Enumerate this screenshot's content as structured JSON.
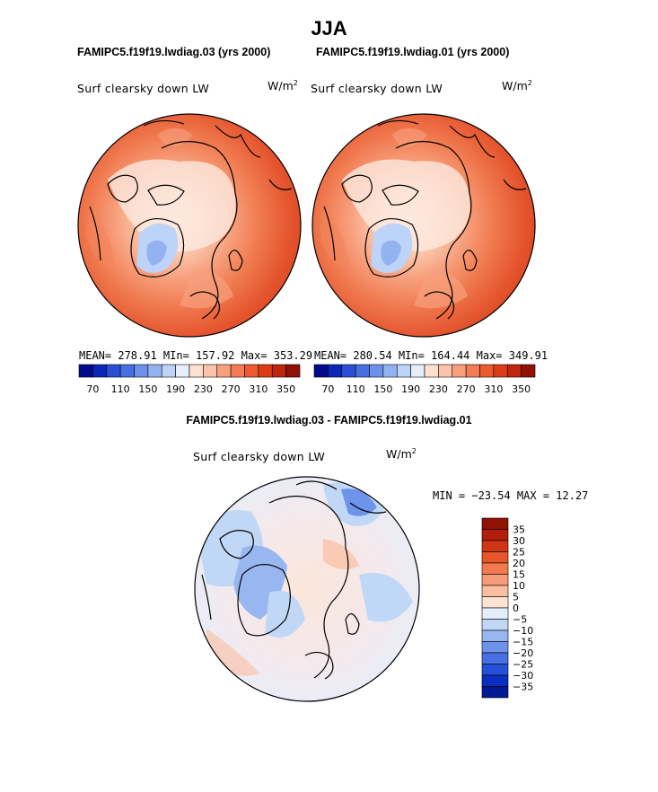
{
  "page_title": "JJA",
  "panels": [
    {
      "case_title": "FAMIPC5.f19f19.lwdiag.03 (yrs 2000)",
      "variable": "Surf clearsky down LW",
      "units_base": "W/m",
      "units_exp": "2",
      "stats_text": "MEAN= 278.91   MIn= 157.92   Max= 353.29"
    },
    {
      "case_title": "FAMIPC5.f19f19.lwdiag.01 (yrs 2000)",
      "variable": "Surf clearsky down LW",
      "units_base": "W/m",
      "units_exp": "2",
      "stats_text": "MEAN= 280.54   MIn= 164.44   Max= 349.91"
    }
  ],
  "diff_panel": {
    "case_title": "FAMIPC5.f19f19.lwdiag.03 - FAMIPC5.f19f19.lwdiag.01",
    "variable": "Surf clearsky down LW",
    "units_base": "W/m",
    "units_exp": "2",
    "minmax_text": "MIN = −23.54 MAX =   12.27"
  },
  "chart_data": [
    {
      "type": "heatmap",
      "projection": "north-polar-stereographic",
      "title": "FAMIPC5.f19f19.lwdiag.03 (yrs 2000)",
      "variable": "Surf clearsky down LW",
      "units": "W/m2",
      "mean": 278.91,
      "min": 157.92,
      "max": 353.29,
      "colorbar_levels": [
        70,
        90,
        110,
        130,
        150,
        170,
        190,
        210,
        230,
        250,
        270,
        290,
        310,
        330,
        350
      ],
      "colorbar_tick_labels": [
        "70",
        "110",
        "150",
        "190",
        "230",
        "270",
        "310",
        "350"
      ],
      "colorbar_colors": [
        "#000c8a",
        "#0a27b8",
        "#2a4fd6",
        "#476fe0",
        "#6b91ea",
        "#93b2f0",
        "#bdd3f7",
        "#e6eefb",
        "#fde0d0",
        "#fbc3a9",
        "#f8a07e",
        "#f47c55",
        "#ec5a30",
        "#dd3c18",
        "#c0260e",
        "#8f1204"
      ]
    },
    {
      "type": "heatmap",
      "projection": "north-polar-stereographic",
      "title": "FAMIPC5.f19f19.lwdiag.01 (yrs 2000)",
      "variable": "Surf clearsky down LW",
      "units": "W/m2",
      "mean": 280.54,
      "min": 164.44,
      "max": 349.91,
      "colorbar_levels": [
        70,
        90,
        110,
        130,
        150,
        170,
        190,
        210,
        230,
        250,
        270,
        290,
        310,
        330,
        350
      ],
      "colorbar_tick_labels": [
        "70",
        "110",
        "150",
        "190",
        "230",
        "270",
        "310",
        "350"
      ],
      "colorbar_colors": [
        "#000c8a",
        "#0a27b8",
        "#2a4fd6",
        "#476fe0",
        "#6b91ea",
        "#93b2f0",
        "#bdd3f7",
        "#e6eefb",
        "#fde0d0",
        "#fbc3a9",
        "#f8a07e",
        "#f47c55",
        "#ec5a30",
        "#dd3c18",
        "#c0260e",
        "#8f1204"
      ]
    },
    {
      "type": "heatmap",
      "projection": "north-polar-stereographic",
      "title": "FAMIPC5.f19f19.lwdiag.03 - FAMIPC5.f19f19.lwdiag.01",
      "variable": "Surf clearsky down LW",
      "units": "W/m2",
      "min": -23.54,
      "max": 12.27,
      "colorbar_orientation": "vertical",
      "colorbar_tick_labels": [
        "35",
        "30",
        "25",
        "20",
        "15",
        "10",
        "5",
        "0",
        "−5",
        "−10",
        "−15",
        "−20",
        "−25",
        "−30",
        "−35"
      ],
      "colorbar_colors": [
        "#8f1204",
        "#b11e0b",
        "#d23516",
        "#e8552b",
        "#f37a4f",
        "#f79c78",
        "#fbbea0",
        "#fde3d2",
        "#e3eefb",
        "#c1d7f6",
        "#98b7f0",
        "#6d93ea",
        "#4670e3",
        "#2550d8",
        "#0a2fc0",
        "#001a95"
      ]
    }
  ]
}
